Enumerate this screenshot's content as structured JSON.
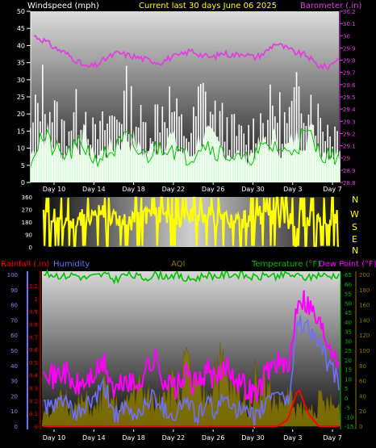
{
  "header": {
    "left": "Windspeed (mph)",
    "center": "Current last 30 days June 06 2025",
    "right": "Barometer (.in)"
  },
  "x_ticks": [
    "Day 10",
    "Day 14",
    "Day 18",
    "Day 22",
    "Day 26",
    "Day 30",
    "Day 3",
    "Day 7"
  ],
  "colors": {
    "wind_avg": "#00c000",
    "wind_gust": "#ffffff",
    "wind_fill": "#ccffcc",
    "barometer": "#e040e0",
    "direction": "#ffff00",
    "temperature": "#00c000",
    "dewpoint": "#ff00ff",
    "humidity": "#6f6fff",
    "rain": "#ff0000",
    "aqi": "#8a7a00"
  },
  "chart_data": [
    {
      "type": "area",
      "title": "Windspeed (mph)",
      "ylabel": "Windspeed (mph)",
      "y2label": "Barometer (.in)",
      "ylim": [
        0,
        50
      ],
      "y2lim": [
        28.8,
        30.2
      ],
      "yticks": [
        "50",
        "45",
        "40",
        "35",
        "30",
        "25",
        "20",
        "15",
        "10",
        "5",
        "0"
      ],
      "y2ticks": [
        "30.2",
        "30.1",
        "30",
        "29.9",
        "29.8",
        "29.7",
        "29.6",
        "29.5",
        "29.4",
        "29.3",
        "29.2",
        "29.1",
        "29",
        "28.9",
        "28.8"
      ],
      "x_days": [
        30
      ],
      "series": [
        {
          "name": "Windspeed (mph)",
          "values": [
            18,
            36,
            28,
            20,
            25,
            30,
            17,
            22,
            26,
            33,
            24,
            20,
            28,
            31,
            22,
            18,
            34,
            27,
            23,
            20,
            17,
            21,
            26,
            29,
            22,
            32,
            36,
            25,
            21,
            19
          ]
        },
        {
          "name": "Barometer (.in)",
          "values": [
            30.0,
            29.96,
            29.9,
            29.86,
            29.8,
            29.74,
            29.76,
            29.82,
            29.86,
            29.84,
            29.82,
            29.8,
            29.78,
            29.82,
            29.84,
            29.88,
            29.84,
            29.82,
            29.86,
            29.84,
            29.86,
            29.82,
            29.86,
            29.94,
            29.9,
            29.86,
            29.84,
            29.76,
            29.74,
            29.82
          ]
        }
      ]
    },
    {
      "type": "scatter",
      "title": "Wind direction",
      "ylim": [
        0,
        360
      ],
      "yticks": [
        "360",
        "270",
        "180",
        "90",
        "0"
      ],
      "right_labels": [
        "N",
        "W",
        "S",
        "E",
        "N"
      ],
      "series": [
        {
          "name": "Direction",
          "values": [
            200,
            220,
            190,
            180,
            210,
            240,
            250,
            200,
            180,
            190,
            210,
            230,
            200,
            190,
            220,
            210,
            240,
            200,
            190,
            180,
            200,
            230,
            220,
            210,
            190,
            200,
            210,
            180,
            200,
            220
          ]
        }
      ]
    },
    {
      "type": "line",
      "legend": {
        "left": [
          {
            "text": "Rainfall (.in)",
            "color": "#ff0000"
          },
          {
            "text": "Humidity",
            "color": "#6f6fff"
          }
        ],
        "center": {
          "text": "AQI",
          "color": "#8a7a00"
        },
        "right": [
          {
            "text": "Temperature (°F)",
            "color": "#00c000"
          },
          {
            "text": "Dew Point (°F)",
            "color": "#ff00ff"
          }
        ]
      },
      "humidity_ticks": [
        "100",
        "90",
        "80",
        "70",
        "60",
        "50",
        "40",
        "30",
        "20",
        "10",
        "0"
      ],
      "rain_ticks": [
        "1.1",
        "1",
        "0.9",
        "0.8",
        "0.7",
        "0.6",
        "0.5",
        "0.4",
        "0.3",
        "0.2",
        "0.1",
        "0"
      ],
      "temp_ticks": [
        "65",
        "60",
        "55",
        "50",
        "45",
        "40",
        "35",
        "30",
        "25",
        "20",
        "15",
        "10",
        "5",
        "0",
        "-5",
        "-10",
        "-15"
      ],
      "aqi_ticks": [
        "200",
        "180",
        "160",
        "140",
        "120",
        "100",
        "80",
        "60",
        "40",
        "20",
        "0"
      ],
      "series": [
        {
          "name": "Temperature (°F)",
          "values": [
            65,
            65,
            64,
            65,
            63,
            64,
            65,
            62,
            65,
            64,
            63,
            65,
            64,
            65,
            62,
            63,
            65,
            64,
            65,
            65,
            64,
            63,
            65,
            64,
            65,
            64,
            63,
            65,
            64,
            65
          ]
        },
        {
          "name": "Dew Point (°F)",
          "values": [
            20,
            10,
            15,
            5,
            8,
            12,
            18,
            2,
            10,
            5,
            15,
            20,
            8,
            5,
            12,
            6,
            15,
            8,
            18,
            10,
            5,
            2,
            15,
            20,
            12,
            55,
            50,
            40,
            30,
            22
          ]
        },
        {
          "name": "Humidity",
          "values": [
            15,
            10,
            20,
            5,
            12,
            18,
            25,
            8,
            10,
            6,
            15,
            20,
            10,
            8,
            18,
            6,
            14,
            10,
            20,
            12,
            6,
            5,
            18,
            25,
            14,
            70,
            65,
            55,
            40,
            30
          ]
        },
        {
          "name": "Rainfall (.in)",
          "values": [
            0,
            0,
            0,
            0,
            0,
            0,
            0,
            0,
            0,
            0,
            0,
            0,
            0,
            0,
            0,
            0,
            0,
            0,
            0,
            0,
            0,
            0,
            0,
            0,
            0.05,
            0.3,
            0.1,
            0,
            0,
            0
          ]
        },
        {
          "name": "AQI",
          "values": [
            30,
            20,
            40,
            25,
            35,
            20,
            50,
            30,
            25,
            60,
            40,
            30,
            70,
            45,
            80,
            50,
            40,
            90,
            60,
            45,
            35,
            70,
            50,
            30,
            40,
            25,
            20,
            35,
            30,
            25
          ]
        }
      ]
    }
  ]
}
